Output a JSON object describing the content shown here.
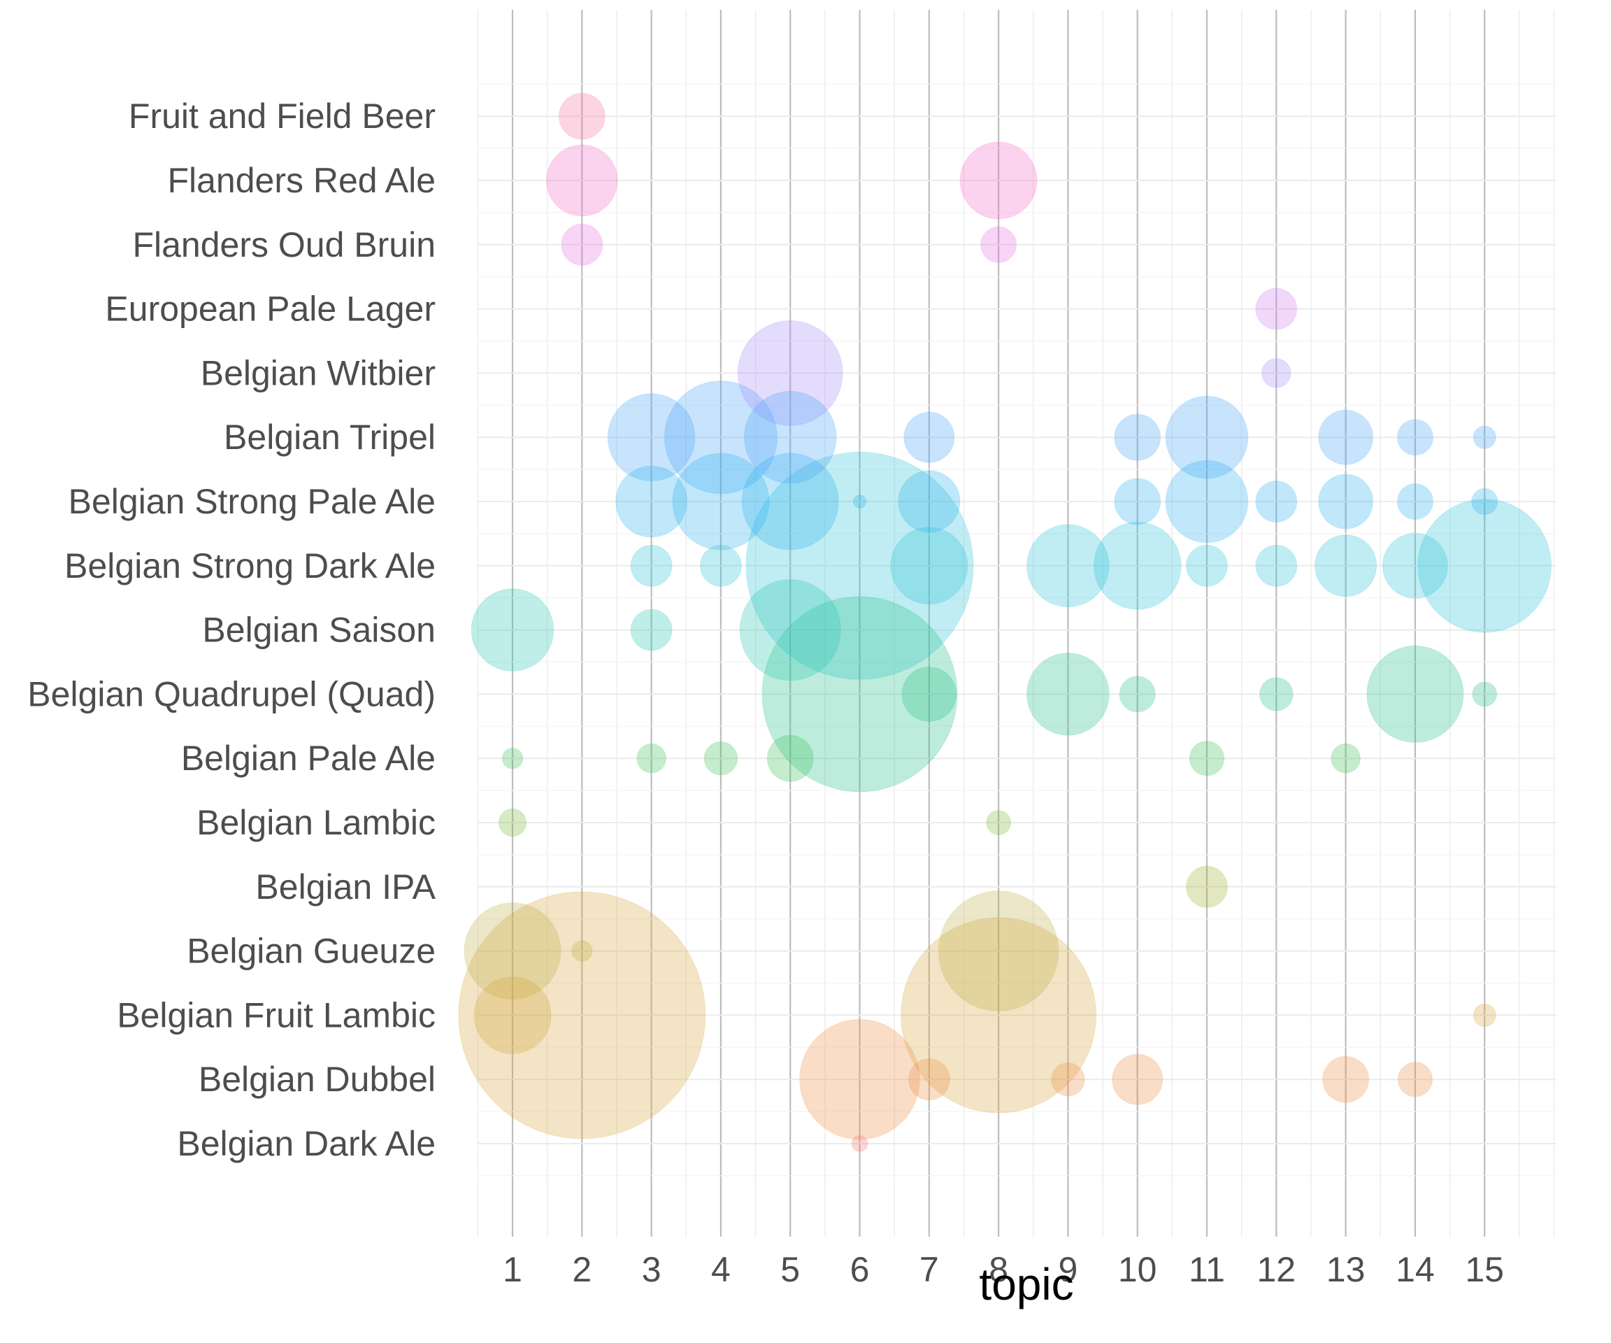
{
  "chart_data": {
    "type": "scatter",
    "subtype": "bubble",
    "title": "",
    "xlabel": "topic",
    "ylabel": "",
    "x_ticks": [
      1,
      2,
      3,
      4,
      5,
      6,
      7,
      8,
      9,
      10,
      11,
      12,
      13,
      14,
      15
    ],
    "xlim": [
      0.5,
      15.5
    ],
    "grid": true,
    "legend": "none",
    "categories": [
      "Belgian Dark Ale",
      "Belgian Dubbel",
      "Belgian Fruit Lambic",
      "Belgian Gueuze",
      "Belgian IPA",
      "Belgian Lambic",
      "Belgian Pale Ale",
      "Belgian Quadrupel (Quad)",
      "Belgian Saison",
      "Belgian Strong Dark Ale",
      "Belgian Strong Pale Ale",
      "Belgian Tripel",
      "Belgian Witbier",
      "European Pale Lager",
      "Flanders Oud Bruin",
      "Flanders Red Ale",
      "Fruit and Field Beer"
    ],
    "colors": {
      "Belgian Dark Ale": "#f8766d",
      "Belgian Dubbel": "#f08f45",
      "Belgian Fruit Lambic": "#d4a73a",
      "Belgian Gueuze": "#c0ae48",
      "Belgian IPA": "#a3ae2c",
      "Belgian Lambic": "#7bb838",
      "Belgian Pale Ale": "#3ec05a",
      "Belgian Quadrupel (Quad)": "#28c08c",
      "Belgian Saison": "#2cc6b4",
      "Belgian Strong Dark Ale": "#2ec4d8",
      "Belgian Strong Pale Ale": "#30b4f0",
      "Belgian Tripel": "#4aa6f8",
      "Belgian Witbier": "#a48af8",
      "European Pale Lager": "#cf7cf0",
      "Flanders Oud Bruin": "#e872e0",
      "Flanders Red Ale": "#f46cc8",
      "Fruit and Field Beer": "#f870a0"
    },
    "points": [
      {
        "style": "Fruit and Field Beer",
        "topic": 2,
        "size": 2.5
      },
      {
        "style": "Flanders Red Ale",
        "topic": 2,
        "size": 6
      },
      {
        "style": "Flanders Red Ale",
        "topic": 8,
        "size": 7
      },
      {
        "style": "Flanders Oud Bruin",
        "topic": 2,
        "size": 2
      },
      {
        "style": "Flanders Oud Bruin",
        "topic": 8,
        "size": 1.5
      },
      {
        "style": "European Pale Lager",
        "topic": 12,
        "size": 2
      },
      {
        "style": "Belgian Witbier",
        "topic": 5,
        "size": 13
      },
      {
        "style": "Belgian Witbier",
        "topic": 12,
        "size": 1
      },
      {
        "style": "Belgian Tripel",
        "topic": 3,
        "size": 9
      },
      {
        "style": "Belgian Tripel",
        "topic": 4,
        "size": 15
      },
      {
        "style": "Belgian Tripel",
        "topic": 5,
        "size": 10
      },
      {
        "style": "Belgian Tripel",
        "topic": 7,
        "size": 3
      },
      {
        "style": "Belgian Tripel",
        "topic": 10,
        "size": 2.5
      },
      {
        "style": "Belgian Tripel",
        "topic": 11,
        "size": 8
      },
      {
        "style": "Belgian Tripel",
        "topic": 13,
        "size": 3.5
      },
      {
        "style": "Belgian Tripel",
        "topic": 14,
        "size": 1.5
      },
      {
        "style": "Belgian Tripel",
        "topic": 15,
        "size": 0.6
      },
      {
        "style": "Belgian Strong Pale Ale",
        "topic": 3,
        "size": 6
      },
      {
        "style": "Belgian Strong Pale Ale",
        "topic": 4,
        "size": 11
      },
      {
        "style": "Belgian Strong Pale Ale",
        "topic": 5,
        "size": 11
      },
      {
        "style": "Belgian Strong Pale Ale",
        "topic": 6,
        "size": 0.2
      },
      {
        "style": "Belgian Strong Pale Ale",
        "topic": 7,
        "size": 4.5
      },
      {
        "style": "Belgian Strong Pale Ale",
        "topic": 10,
        "size": 2.5
      },
      {
        "style": "Belgian Strong Pale Ale",
        "topic": 11,
        "size": 8
      },
      {
        "style": "Belgian Strong Pale Ale",
        "topic": 12,
        "size": 2
      },
      {
        "style": "Belgian Strong Pale Ale",
        "topic": 13,
        "size": 3.5
      },
      {
        "style": "Belgian Strong Pale Ale",
        "topic": 14,
        "size": 1.5
      },
      {
        "style": "Belgian Strong Pale Ale",
        "topic": 15,
        "size": 0.8
      },
      {
        "style": "Belgian Strong Dark Ale",
        "topic": 3,
        "size": 2
      },
      {
        "style": "Belgian Strong Dark Ale",
        "topic": 4,
        "size": 2
      },
      {
        "style": "Belgian Strong Dark Ale",
        "topic": 6,
        "size": 61
      },
      {
        "style": "Belgian Strong Dark Ale",
        "topic": 7,
        "size": 7
      },
      {
        "style": "Belgian Strong Dark Ale",
        "topic": 9,
        "size": 8
      },
      {
        "style": "Belgian Strong Dark Ale",
        "topic": 10,
        "size": 9
      },
      {
        "style": "Belgian Strong Dark Ale",
        "topic": 11,
        "size": 2
      },
      {
        "style": "Belgian Strong Dark Ale",
        "topic": 12,
        "size": 2
      },
      {
        "style": "Belgian Strong Dark Ale",
        "topic": 13,
        "size": 4.5
      },
      {
        "style": "Belgian Strong Dark Ale",
        "topic": 14,
        "size": 5
      },
      {
        "style": "Belgian Strong Dark Ale",
        "topic": 15,
        "size": 21
      },
      {
        "style": "Belgian Saison",
        "topic": 1,
        "size": 8
      },
      {
        "style": "Belgian Saison",
        "topic": 3,
        "size": 2
      },
      {
        "style": "Belgian Saison",
        "topic": 5,
        "size": 12
      },
      {
        "style": "Belgian Quadrupel (Quad)",
        "topic": 6,
        "size": 45
      },
      {
        "style": "Belgian Quadrupel (Quad)",
        "topic": 7,
        "size": 3.5
      },
      {
        "style": "Belgian Quadrupel (Quad)",
        "topic": 9,
        "size": 8
      },
      {
        "style": "Belgian Quadrupel (Quad)",
        "topic": 10,
        "size": 1.5
      },
      {
        "style": "Belgian Quadrupel (Quad)",
        "topic": 12,
        "size": 1.3
      },
      {
        "style": "Belgian Quadrupel (Quad)",
        "topic": 14,
        "size": 11
      },
      {
        "style": "Belgian Quadrupel (Quad)",
        "topic": 15,
        "size": 0.7
      },
      {
        "style": "Belgian Pale Ale",
        "topic": 1,
        "size": 0.5
      },
      {
        "style": "Belgian Pale Ale",
        "topic": 3,
        "size": 1
      },
      {
        "style": "Belgian Pale Ale",
        "topic": 4,
        "size": 1.3
      },
      {
        "style": "Belgian Pale Ale",
        "topic": 5,
        "size": 2.5
      },
      {
        "style": "Belgian Pale Ale",
        "topic": 11,
        "size": 1.4
      },
      {
        "style": "Belgian Pale Ale",
        "topic": 13,
        "size": 1
      },
      {
        "style": "Belgian Lambic",
        "topic": 1,
        "size": 0.9
      },
      {
        "style": "Belgian Lambic",
        "topic": 8,
        "size": 0.7
      },
      {
        "style": "Belgian IPA",
        "topic": 11,
        "size": 2
      },
      {
        "style": "Belgian Gueuze",
        "topic": 1,
        "size": 11
      },
      {
        "style": "Belgian Gueuze",
        "topic": 2,
        "size": 0.5
      },
      {
        "style": "Belgian Gueuze",
        "topic": 8,
        "size": 17
      },
      {
        "style": "Belgian Fruit Lambic",
        "topic": 1,
        "size": 7
      },
      {
        "style": "Belgian Fruit Lambic",
        "topic": 2,
        "size": 72
      },
      {
        "style": "Belgian Fruit Lambic",
        "topic": 8,
        "size": 45
      },
      {
        "style": "Belgian Fruit Lambic",
        "topic": 15,
        "size": 0.6
      },
      {
        "style": "Belgian Dubbel",
        "topic": 6,
        "size": 17
      },
      {
        "style": "Belgian Dubbel",
        "topic": 7,
        "size": 2
      },
      {
        "style": "Belgian Dubbel",
        "topic": 9,
        "size": 1.3
      },
      {
        "style": "Belgian Dubbel",
        "topic": 10,
        "size": 3
      },
      {
        "style": "Belgian Dubbel",
        "topic": 13,
        "size": 2.5
      },
      {
        "style": "Belgian Dubbel",
        "topic": 14,
        "size": 1.4
      },
      {
        "style": "Belgian Dark Ale",
        "topic": 6,
        "size": 0.3
      }
    ]
  }
}
